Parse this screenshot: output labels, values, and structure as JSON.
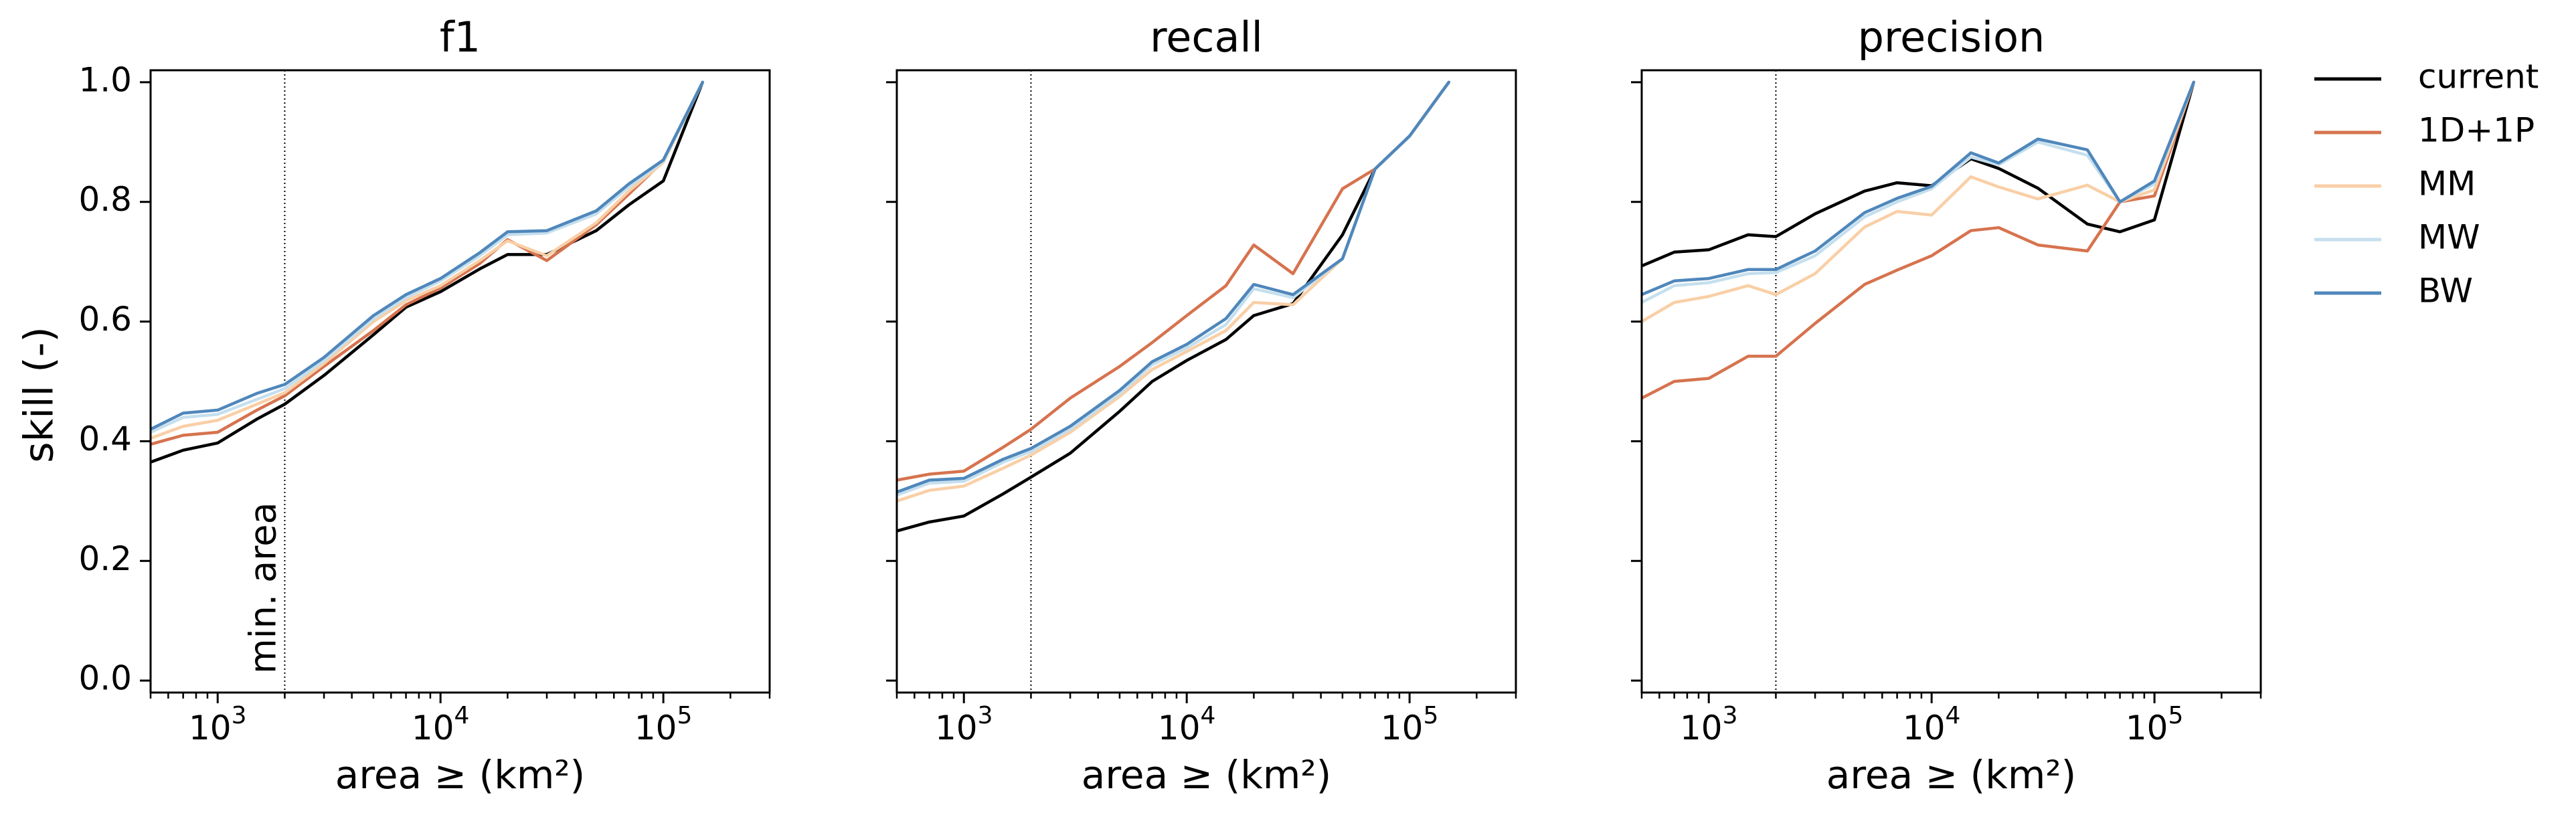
{
  "figure": {
    "ylabel": "skill (-)",
    "vline_label": "min. area",
    "legend_position": "right, outside the plot area"
  },
  "legend": [
    {
      "name": "current",
      "color": "#000000"
    },
    {
      "name": "1D+1P",
      "color": "#d6734e"
    },
    {
      "name": "MM",
      "color": "#f9cfa6"
    },
    {
      "name": "MW",
      "color": "#c5dfee"
    },
    {
      "name": "BW",
      "color": "#4f87bb"
    }
  ],
  "chart_data": [
    {
      "type": "line",
      "title": "f1",
      "xlabel": "area ≥ (km²)",
      "ylabel": "skill (-)",
      "x_scale": "log",
      "xlim": [
        500,
        300000
      ],
      "ylim": [
        -0.02,
        1.02
      ],
      "x_ticks": [
        {
          "value": 1000,
          "base": "10",
          "exp": "3"
        },
        {
          "value": 10000,
          "base": "10",
          "exp": "4"
        },
        {
          "value": 100000,
          "base": "10",
          "exp": "5"
        }
      ],
      "y_ticks": [
        "0.0",
        "0.2",
        "0.4",
        "0.6",
        "0.8",
        "1.0"
      ],
      "vline_x": 2000,
      "x": [
        500,
        700,
        1000,
        1500,
        2000,
        3000,
        5000,
        7000,
        10000,
        15000,
        20000,
        30000,
        50000,
        70000,
        100000,
        150000
      ],
      "series": [
        {
          "name": "current",
          "values": [
            0.365,
            0.385,
            0.397,
            0.437,
            0.462,
            0.51,
            0.578,
            0.624,
            0.65,
            0.688,
            0.712,
            0.712,
            0.752,
            0.795,
            0.835,
            1.0
          ]
        },
        {
          "name": "1D+1P",
          "values": [
            0.395,
            0.41,
            0.415,
            0.452,
            0.476,
            0.525,
            0.585,
            0.628,
            0.656,
            0.697,
            0.737,
            0.702,
            0.762,
            0.813,
            0.868,
            1.0
          ]
        },
        {
          "name": "MM",
          "values": [
            0.405,
            0.425,
            0.435,
            0.462,
            0.481,
            0.53,
            0.6,
            0.635,
            0.66,
            0.702,
            0.735,
            0.71,
            0.765,
            0.818,
            0.866,
            1.0
          ]
        },
        {
          "name": "MW",
          "values": [
            0.415,
            0.44,
            0.445,
            0.47,
            0.488,
            0.535,
            0.605,
            0.64,
            0.668,
            0.71,
            0.745,
            0.748,
            0.78,
            0.825,
            0.868,
            1.0
          ]
        },
        {
          "name": "BW",
          "values": [
            0.42,
            0.447,
            0.452,
            0.48,
            0.495,
            0.54,
            0.61,
            0.645,
            0.672,
            0.715,
            0.75,
            0.752,
            0.785,
            0.83,
            0.87,
            1.0
          ]
        }
      ]
    },
    {
      "type": "line",
      "title": "recall",
      "xlabel": "area ≥ (km²)",
      "ylabel": "",
      "x_scale": "log",
      "xlim": [
        500,
        300000
      ],
      "ylim": [
        -0.02,
        1.02
      ],
      "x_ticks": [
        {
          "value": 1000,
          "base": "10",
          "exp": "3"
        },
        {
          "value": 10000,
          "base": "10",
          "exp": "4"
        },
        {
          "value": 100000,
          "base": "10",
          "exp": "5"
        }
      ],
      "y_ticks": [
        "",
        "",
        "",
        "",
        "",
        ""
      ],
      "vline_x": 2000,
      "x": [
        500,
        700,
        1000,
        1500,
        2000,
        3000,
        5000,
        7000,
        10000,
        15000,
        20000,
        30000,
        50000,
        70000,
        100000,
        150000
      ],
      "series": [
        {
          "name": "current",
          "values": [
            0.25,
            0.265,
            0.275,
            0.312,
            0.34,
            0.38,
            0.45,
            0.5,
            0.535,
            0.57,
            0.61,
            0.63,
            0.745,
            0.855,
            0.91,
            1.0
          ]
        },
        {
          "name": "1D+1P",
          "values": [
            0.335,
            0.345,
            0.35,
            0.39,
            0.42,
            0.472,
            0.525,
            0.565,
            0.61,
            0.66,
            0.728,
            0.68,
            0.822,
            0.855,
            0.91,
            1.0
          ]
        },
        {
          "name": "MM",
          "values": [
            0.3,
            0.318,
            0.325,
            0.355,
            0.377,
            0.415,
            0.475,
            0.52,
            0.55,
            0.585,
            0.632,
            0.628,
            0.705,
            0.855,
            0.91,
            1.0
          ]
        },
        {
          "name": "MW",
          "values": [
            0.31,
            0.33,
            0.333,
            0.365,
            0.383,
            0.42,
            0.48,
            0.528,
            0.556,
            0.595,
            0.655,
            0.64,
            0.705,
            0.855,
            0.91,
            1.0
          ]
        },
        {
          "name": "BW",
          "values": [
            0.315,
            0.335,
            0.338,
            0.37,
            0.388,
            0.425,
            0.485,
            0.533,
            0.562,
            0.605,
            0.662,
            0.645,
            0.705,
            0.855,
            0.91,
            1.0
          ]
        }
      ]
    },
    {
      "type": "line",
      "title": "precision",
      "xlabel": "area ≥ (km²)",
      "ylabel": "",
      "x_scale": "log",
      "xlim": [
        500,
        300000
      ],
      "ylim": [
        -0.02,
        1.02
      ],
      "x_ticks": [
        {
          "value": 1000,
          "base": "10",
          "exp": "3"
        },
        {
          "value": 10000,
          "base": "10",
          "exp": "4"
        },
        {
          "value": 100000,
          "base": "10",
          "exp": "5"
        }
      ],
      "y_ticks": [
        "",
        "",
        "",
        "",
        "",
        ""
      ],
      "vline_x": 2000,
      "x": [
        500,
        700,
        1000,
        1500,
        2000,
        3000,
        5000,
        7000,
        10000,
        15000,
        20000,
        30000,
        50000,
        70000,
        100000,
        150000
      ],
      "series": [
        {
          "name": "current",
          "values": [
            0.693,
            0.716,
            0.72,
            0.745,
            0.742,
            0.78,
            0.818,
            0.832,
            0.827,
            0.872,
            0.856,
            0.823,
            0.763,
            0.75,
            0.77,
            1.0
          ]
        },
        {
          "name": "1D+1P",
          "values": [
            0.472,
            0.5,
            0.505,
            0.542,
            0.542,
            0.597,
            0.662,
            0.686,
            0.71,
            0.752,
            0.757,
            0.728,
            0.718,
            0.8,
            0.81,
            1.0
          ]
        },
        {
          "name": "MM",
          "values": [
            0.6,
            0.632,
            0.642,
            0.66,
            0.645,
            0.68,
            0.758,
            0.784,
            0.778,
            0.842,
            0.825,
            0.805,
            0.828,
            0.8,
            0.82,
            1.0
          ]
        },
        {
          "name": "MW",
          "values": [
            0.632,
            0.66,
            0.665,
            0.68,
            0.682,
            0.71,
            0.775,
            0.8,
            0.822,
            0.875,
            0.862,
            0.9,
            0.878,
            0.8,
            0.83,
            1.0
          ]
        },
        {
          "name": "BW",
          "values": [
            0.645,
            0.668,
            0.672,
            0.687,
            0.687,
            0.718,
            0.782,
            0.806,
            0.826,
            0.882,
            0.865,
            0.905,
            0.887,
            0.8,
            0.835,
            1.0
          ]
        }
      ]
    }
  ]
}
